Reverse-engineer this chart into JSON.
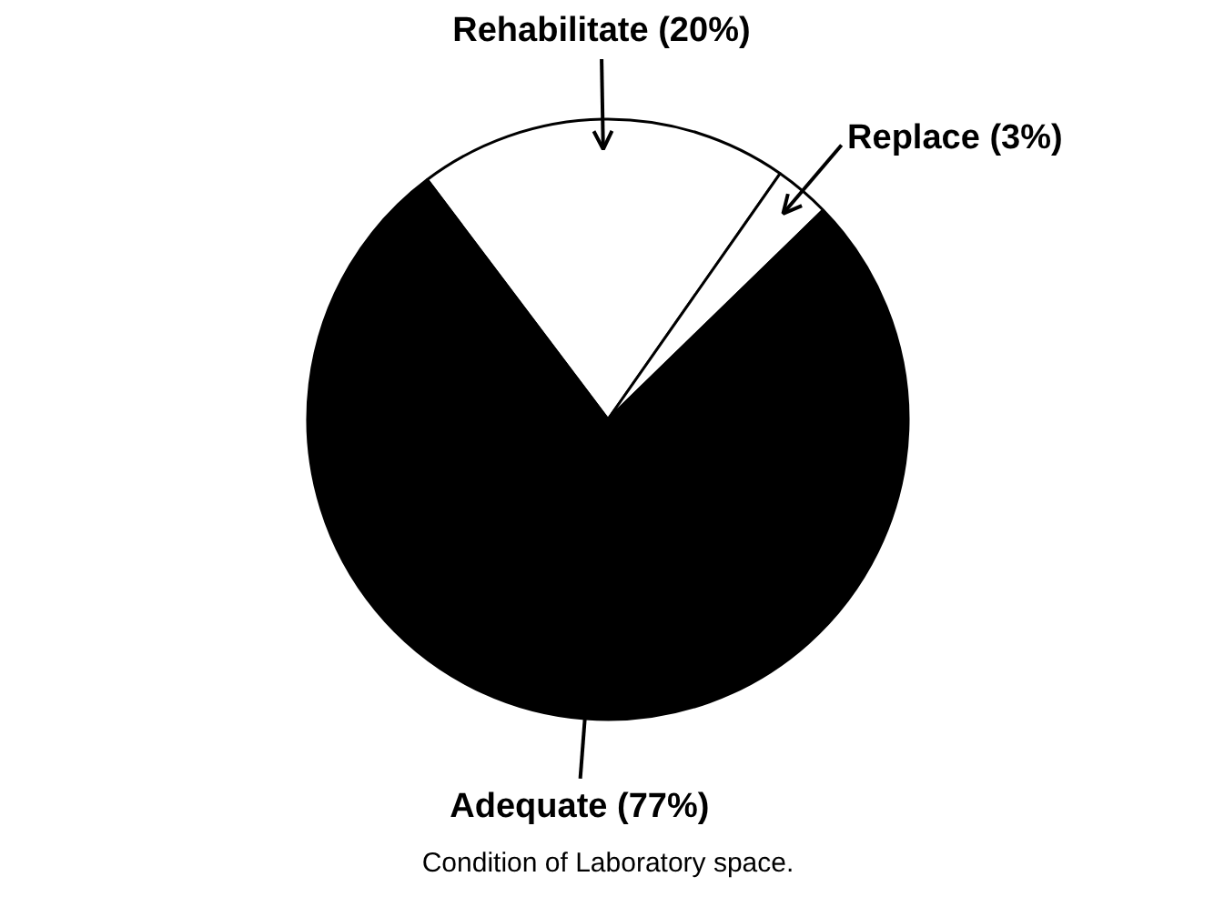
{
  "chart_data": {
    "type": "pie",
    "title": "Condition of Laboratory space.",
    "categories": [
      "Rehabilitate (20%)",
      "Replace (3%)",
      "Adequate (77%)"
    ],
    "values": [
      20,
      3,
      77
    ],
    "colors": [
      "#ffffff",
      "#ffffff",
      "#000000"
    ]
  }
}
